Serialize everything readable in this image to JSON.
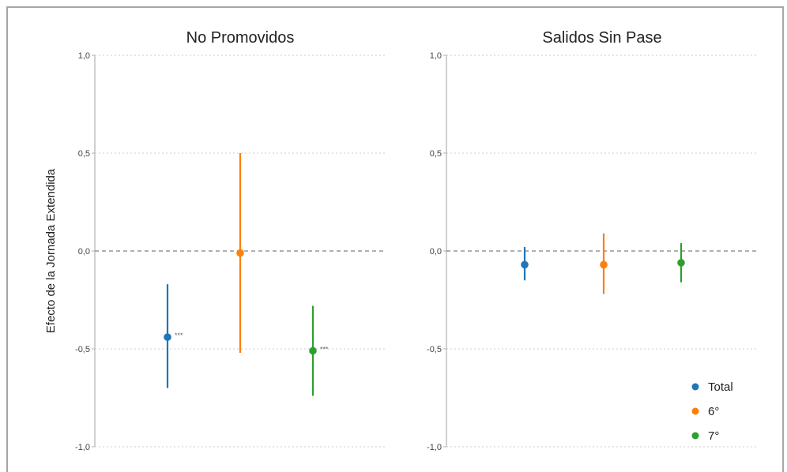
{
  "chart_data": [
    {
      "type": "scatter",
      "title": "No Promovidos",
      "ylabel": "Efecto de la Jornada Extendida",
      "ylim": [
        -1.0,
        1.0
      ],
      "yticks": [
        "1,0",
        "0,5",
        "0,0",
        "-0,5",
        "-1,0"
      ],
      "grid": "dotted horizontal",
      "series": [
        {
          "name": "Total",
          "estimate": -0.44,
          "ci": [
            -0.7,
            -0.17
          ],
          "significance": "***"
        },
        {
          "name": "6°",
          "estimate": -0.01,
          "ci": [
            -0.52,
            0.5
          ],
          "significance": ""
        },
        {
          "name": "7°",
          "estimate": -0.51,
          "ci": [
            -0.74,
            -0.28
          ],
          "significance": "***"
        }
      ]
    },
    {
      "type": "scatter",
      "title": "Salidos Sin Pase",
      "ylabel": "",
      "ylim": [
        -1.0,
        1.0
      ],
      "yticks": [
        "1,0",
        "0,5",
        "0,0",
        "-0,5",
        "-1,0"
      ],
      "grid": "dotted horizontal",
      "series": [
        {
          "name": "Total",
          "estimate": -0.07,
          "ci": [
            -0.15,
            0.02
          ],
          "significance": ""
        },
        {
          "name": "6°",
          "estimate": -0.07,
          "ci": [
            -0.22,
            0.09
          ],
          "significance": ""
        },
        {
          "name": "7°",
          "estimate": -0.06,
          "ci": [
            -0.16,
            0.04
          ],
          "significance": ""
        }
      ]
    }
  ],
  "legend": {
    "placement": "bottom-right",
    "items": [
      {
        "label": "Total",
        "color": "#1f77b4"
      },
      {
        "label": "6°",
        "color": "#ff7f0e"
      },
      {
        "label": "7°",
        "color": "#2ca02c"
      }
    ]
  },
  "colors": {
    "Total": "#1f77b4",
    "6°": "#ff7f0e",
    "7°": "#2ca02c"
  }
}
